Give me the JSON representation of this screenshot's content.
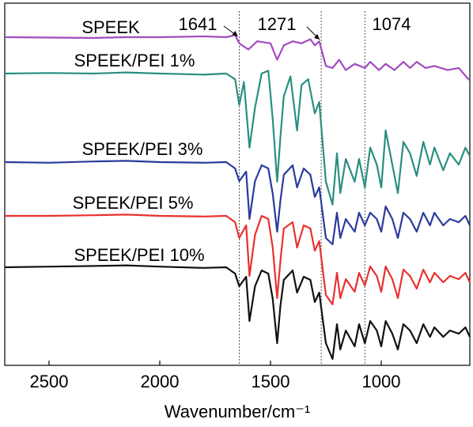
{
  "chart_data": {
    "type": "line",
    "title": "",
    "xlabel": "Wavenumber/cm⁻¹",
    "ylabel": "",
    "xlim": [
      2700,
      600
    ],
    "x_reversed": true,
    "x_ticks": [
      2500,
      2000,
      1500,
      1000
    ],
    "x_tick_labels": [
      "2500",
      "2000",
      "1500",
      "1000"
    ],
    "grid": false,
    "y_axis_shown": false,
    "reference_lines": [
      {
        "x": 1641,
        "label": "1641",
        "style": "dotted"
      },
      {
        "x": 1271,
        "label": "1271",
        "style": "dotted"
      },
      {
        "x": 1074,
        "label": "1074",
        "style": "dotted"
      }
    ],
    "series": [
      {
        "name": "SPEEK",
        "color": "#a24bbf",
        "shape": [
          [
            2700,
            0.0
          ],
          [
            2500,
            0.01
          ],
          [
            2300,
            0.02
          ],
          [
            2150,
            0.0
          ],
          [
            2000,
            0.0
          ],
          [
            1800,
            -0.02
          ],
          [
            1700,
            0.0
          ],
          [
            1660,
            -0.05
          ],
          [
            1641,
            0.15
          ],
          [
            1600,
            0.3
          ],
          [
            1560,
            0.1
          ],
          [
            1500,
            0.15
          ],
          [
            1470,
            0.55
          ],
          [
            1440,
            0.2
          ],
          [
            1400,
            0.1
          ],
          [
            1360,
            0.15
          ],
          [
            1320,
            0.05
          ],
          [
            1300,
            0.2
          ],
          [
            1280,
            0.1
          ],
          [
            1250,
            0.7
          ],
          [
            1220,
            0.75
          ],
          [
            1190,
            0.55
          ],
          [
            1160,
            0.8
          ],
          [
            1120,
            0.65
          ],
          [
            1074,
            0.75
          ],
          [
            1050,
            0.6
          ],
          [
            1010,
            0.8
          ],
          [
            980,
            0.65
          ],
          [
            940,
            0.8
          ],
          [
            900,
            0.6
          ],
          [
            870,
            0.75
          ],
          [
            840,
            0.6
          ],
          [
            800,
            0.75
          ],
          [
            760,
            0.7
          ],
          [
            700,
            0.8
          ],
          [
            650,
            0.75
          ],
          [
            610,
            1.0
          ],
          [
            600,
            1.05
          ]
        ]
      },
      {
        "name": "SPEEK/PEI 1%",
        "color": "#2a8f80",
        "shape": [
          [
            2700,
            0.0
          ],
          [
            2500,
            -0.01
          ],
          [
            2300,
            0.0
          ],
          [
            2150,
            -0.02
          ],
          [
            2000,
            0.0
          ],
          [
            1800,
            0.02
          ],
          [
            1700,
            0.0
          ],
          [
            1660,
            0.1
          ],
          [
            1641,
            0.55
          ],
          [
            1620,
            0.15
          ],
          [
            1595,
            1.3
          ],
          [
            1570,
            0.6
          ],
          [
            1540,
            0.0
          ],
          [
            1510,
            -0.05
          ],
          [
            1490,
            0.8
          ],
          [
            1470,
            1.9
          ],
          [
            1455,
            1.1
          ],
          [
            1440,
            0.4
          ],
          [
            1410,
            0.05
          ],
          [
            1380,
            1.0
          ],
          [
            1360,
            0.2
          ],
          [
            1330,
            0.1
          ],
          [
            1300,
            0.7
          ],
          [
            1280,
            0.5
          ],
          [
            1250,
            1.9
          ],
          [
            1220,
            2.3
          ],
          [
            1200,
            1.4
          ],
          [
            1185,
            2.1
          ],
          [
            1160,
            1.5
          ],
          [
            1120,
            1.9
          ],
          [
            1100,
            1.5
          ],
          [
            1074,
            2.0
          ],
          [
            1050,
            1.3
          ],
          [
            1020,
            1.6
          ],
          [
            1000,
            2.0
          ],
          [
            980,
            1.0
          ],
          [
            950,
            1.6
          ],
          [
            925,
            2.1
          ],
          [
            900,
            1.2
          ],
          [
            870,
            1.4
          ],
          [
            840,
            1.8
          ],
          [
            810,
            1.2
          ],
          [
            780,
            1.6
          ],
          [
            760,
            1.3
          ],
          [
            720,
            1.7
          ],
          [
            690,
            1.4
          ],
          [
            650,
            1.6
          ],
          [
            620,
            1.3
          ],
          [
            600,
            1.45
          ]
        ]
      },
      {
        "name": "SPEEK/PEI 3%",
        "color": "#2b3a9c",
        "shape": [
          [
            2700,
            0.0
          ],
          [
            2500,
            0.01
          ],
          [
            2300,
            -0.01
          ],
          [
            2150,
            -0.02
          ],
          [
            2000,
            0.0
          ],
          [
            1800,
            0.01
          ],
          [
            1700,
            0.0
          ],
          [
            1660,
            0.1
          ],
          [
            1641,
            0.3
          ],
          [
            1610,
            0.15
          ],
          [
            1595,
            0.9
          ],
          [
            1570,
            0.3
          ],
          [
            1540,
            0.05
          ],
          [
            1510,
            0.1
          ],
          [
            1490,
            0.5
          ],
          [
            1470,
            1.1
          ],
          [
            1455,
            0.6
          ],
          [
            1440,
            0.2
          ],
          [
            1400,
            0.05
          ],
          [
            1380,
            0.4
          ],
          [
            1350,
            0.1
          ],
          [
            1320,
            0.2
          ],
          [
            1300,
            0.55
          ],
          [
            1280,
            0.4
          ],
          [
            1250,
            1.2
          ],
          [
            1220,
            1.3
          ],
          [
            1200,
            0.8
          ],
          [
            1185,
            1.2
          ],
          [
            1160,
            0.9
          ],
          [
            1120,
            1.1
          ],
          [
            1100,
            0.8
          ],
          [
            1074,
            1.0
          ],
          [
            1050,
            0.8
          ],
          [
            1020,
            0.9
          ],
          [
            1000,
            1.1
          ],
          [
            980,
            0.7
          ],
          [
            950,
            0.9
          ],
          [
            925,
            1.2
          ],
          [
            900,
            0.8
          ],
          [
            870,
            0.9
          ],
          [
            840,
            1.1
          ],
          [
            810,
            0.8
          ],
          [
            780,
            1.0
          ],
          [
            760,
            0.8
          ],
          [
            720,
            1.0
          ],
          [
            690,
            0.9
          ],
          [
            650,
            0.95
          ],
          [
            620,
            0.85
          ],
          [
            600,
            1.0
          ]
        ]
      },
      {
        "name": "SPEEK/PEI 5%",
        "color": "#e8312f",
        "shape": [
          [
            2700,
            0.0
          ],
          [
            2500,
            0.0
          ],
          [
            2300,
            -0.01
          ],
          [
            2150,
            -0.02
          ],
          [
            2000,
            0.0
          ],
          [
            1800,
            0.01
          ],
          [
            1700,
            0.0
          ],
          [
            1660,
            0.1
          ],
          [
            1641,
            0.35
          ],
          [
            1610,
            0.15
          ],
          [
            1595,
            0.95
          ],
          [
            1570,
            0.3
          ],
          [
            1540,
            0.0
          ],
          [
            1510,
            0.05
          ],
          [
            1490,
            0.5
          ],
          [
            1470,
            1.3
          ],
          [
            1455,
            0.7
          ],
          [
            1440,
            0.2
          ],
          [
            1400,
            0.1
          ],
          [
            1380,
            0.5
          ],
          [
            1350,
            0.15
          ],
          [
            1320,
            0.2
          ],
          [
            1300,
            0.55
          ],
          [
            1280,
            0.4
          ],
          [
            1250,
            1.25
          ],
          [
            1220,
            1.4
          ],
          [
            1200,
            0.9
          ],
          [
            1185,
            1.3
          ],
          [
            1160,
            1.0
          ],
          [
            1120,
            1.2
          ],
          [
            1100,
            0.9
          ],
          [
            1074,
            1.1
          ],
          [
            1050,
            0.8
          ],
          [
            1020,
            0.95
          ],
          [
            1000,
            1.2
          ],
          [
            980,
            0.8
          ],
          [
            950,
            1.0
          ],
          [
            925,
            1.3
          ],
          [
            900,
            0.85
          ],
          [
            870,
            0.95
          ],
          [
            840,
            1.15
          ],
          [
            810,
            0.85
          ],
          [
            780,
            1.05
          ],
          [
            760,
            0.9
          ],
          [
            720,
            1.05
          ],
          [
            690,
            0.95
          ],
          [
            650,
            1.0
          ],
          [
            620,
            0.9
          ],
          [
            600,
            1.05
          ]
        ]
      },
      {
        "name": "SPEEK/PEI 10%",
        "color": "#111111",
        "shape": [
          [
            2700,
            0.0
          ],
          [
            2500,
            -0.01
          ],
          [
            2300,
            -0.02
          ],
          [
            2150,
            -0.03
          ],
          [
            2000,
            -0.01
          ],
          [
            1800,
            0.01
          ],
          [
            1700,
            0.0
          ],
          [
            1660,
            0.1
          ],
          [
            1641,
            0.3
          ],
          [
            1610,
            0.15
          ],
          [
            1595,
            0.85
          ],
          [
            1570,
            0.3
          ],
          [
            1540,
            0.05
          ],
          [
            1510,
            0.1
          ],
          [
            1490,
            0.5
          ],
          [
            1470,
            1.2
          ],
          [
            1455,
            0.6
          ],
          [
            1440,
            0.2
          ],
          [
            1400,
            0.05
          ],
          [
            1380,
            0.4
          ],
          [
            1350,
            0.15
          ],
          [
            1320,
            0.2
          ],
          [
            1300,
            0.55
          ],
          [
            1280,
            0.4
          ],
          [
            1250,
            1.2
          ],
          [
            1220,
            1.45
          ],
          [
            1200,
            0.9
          ],
          [
            1185,
            1.3
          ],
          [
            1160,
            1.0
          ],
          [
            1120,
            1.25
          ],
          [
            1100,
            0.9
          ],
          [
            1074,
            1.2
          ],
          [
            1050,
            0.85
          ],
          [
            1020,
            1.0
          ],
          [
            1000,
            1.25
          ],
          [
            980,
            0.85
          ],
          [
            950,
            1.05
          ],
          [
            925,
            1.3
          ],
          [
            900,
            0.9
          ],
          [
            870,
            1.0
          ],
          [
            840,
            1.2
          ],
          [
            810,
            0.9
          ],
          [
            780,
            1.1
          ],
          [
            760,
            0.95
          ],
          [
            720,
            1.1
          ],
          [
            690,
            1.0
          ],
          [
            650,
            1.05
          ],
          [
            620,
            0.95
          ],
          [
            600,
            1.1
          ]
        ]
      }
    ]
  }
}
